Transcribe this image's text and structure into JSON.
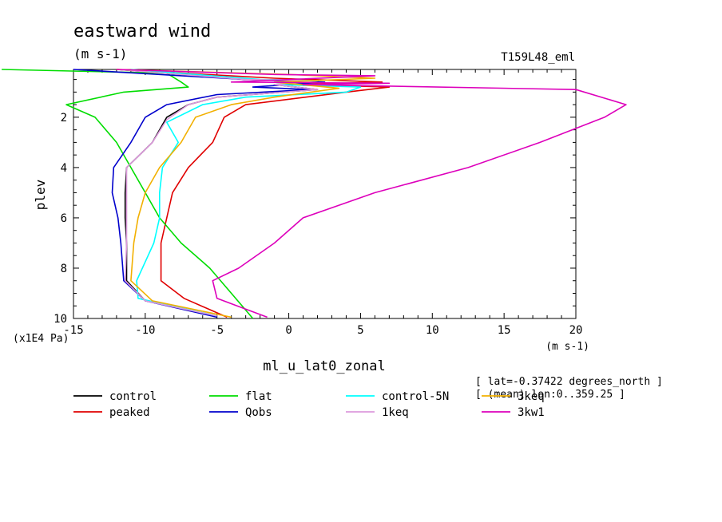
{
  "chart_data": {
    "type": "line",
    "title": "eastward wind",
    "subtitle": "(m s-1)",
    "run_label": "T159L48_eml",
    "xlabel": "ml_u_lat0_zonal",
    "ylabel": "plev",
    "x_unit": "(m s-1)",
    "y_unit": "(x1E4 Pa)",
    "xlim": [
      -15,
      20
    ],
    "ylim": [
      10,
      0.1
    ],
    "x_ticks": [
      "-15",
      "-10",
      "-5",
      "0",
      "5",
      "10",
      "15",
      "20"
    ],
    "y_ticks": [
      "2",
      "4",
      "6",
      "8",
      "10"
    ],
    "notes": [
      "[ lat=-0.37422 degrees_north ]",
      "[ (mean) lon:0..359.25 ]"
    ],
    "series": [
      {
        "name": "control",
        "color": "#000000",
        "points": [
          [
            -12,
            0.1
          ],
          [
            -3,
            0.5
          ],
          [
            2,
            0.55
          ],
          [
            -1,
            0.7
          ],
          [
            2,
            0.9
          ],
          [
            -5,
            1.2
          ],
          [
            -7,
            1.5
          ],
          [
            -8.5,
            2
          ],
          [
            -9.5,
            3
          ],
          [
            -11.3,
            4
          ],
          [
            -11.4,
            5
          ],
          [
            -11.4,
            6
          ],
          [
            -11.3,
            7
          ],
          [
            -11.3,
            8.5
          ],
          [
            -10,
            9.3
          ],
          [
            -5,
            9.9
          ]
        ]
      },
      {
        "name": "peaked",
        "color": "#e00000",
        "points": [
          [
            -12,
            0.1
          ],
          [
            -1,
            0.45
          ],
          [
            6.5,
            0.6
          ],
          [
            1,
            0.7
          ],
          [
            7,
            0.8
          ],
          [
            4,
            1
          ],
          [
            -3,
            1.5
          ],
          [
            -4.5,
            2
          ],
          [
            -5.3,
            3
          ],
          [
            -7,
            4
          ],
          [
            -8.1,
            5
          ],
          [
            -8.5,
            6
          ],
          [
            -8.9,
            7
          ],
          [
            -8.9,
            8.5
          ],
          [
            -7.3,
            9.2
          ],
          [
            -4.3,
            9.95
          ]
        ]
      },
      {
        "name": "flat",
        "color": "#00dd00",
        "points": [
          [
            -20,
            0.1
          ],
          [
            -8.5,
            0.25
          ],
          [
            -7.5,
            0.6
          ],
          [
            -7,
            0.8
          ],
          [
            -11.5,
            1
          ],
          [
            -15.5,
            1.5
          ],
          [
            -13.5,
            2
          ],
          [
            -12,
            3
          ],
          [
            -11,
            4
          ],
          [
            -10,
            5
          ],
          [
            -9,
            6
          ],
          [
            -7.5,
            7
          ],
          [
            -5.5,
            8
          ],
          [
            -4,
            9
          ],
          [
            -2.5,
            10
          ]
        ]
      },
      {
        "name": "Qobs",
        "color": "#0000cc",
        "points": [
          [
            -15,
            0.1
          ],
          [
            -3,
            0.5
          ],
          [
            2.5,
            0.6
          ],
          [
            -2.5,
            0.8
          ],
          [
            1.5,
            0.9
          ],
          [
            -5,
            1.1
          ],
          [
            -8.5,
            1.5
          ],
          [
            -10,
            2
          ],
          [
            -11,
            3
          ],
          [
            -12.2,
            4
          ],
          [
            -12.3,
            5
          ],
          [
            -11.9,
            6
          ],
          [
            -11.7,
            7
          ],
          [
            -11.5,
            8.5
          ],
          [
            -10,
            9.3
          ],
          [
            -5,
            9.95
          ]
        ]
      },
      {
        "name": "control-5N",
        "color": "#00ffff",
        "points": [
          [
            -11,
            0.1
          ],
          [
            -2,
            0.5
          ],
          [
            2,
            0.55
          ],
          [
            -1,
            0.7
          ],
          [
            5,
            0.8
          ],
          [
            4,
            1
          ],
          [
            -3,
            1.2
          ],
          [
            -6,
            1.5
          ],
          [
            -8.5,
            2.2
          ],
          [
            -7.7,
            3
          ],
          [
            -8.8,
            4
          ],
          [
            -9,
            5
          ],
          [
            -9,
            6
          ],
          [
            -9.4,
            7
          ],
          [
            -10.6,
            8.5
          ],
          [
            -10.5,
            9.2
          ],
          [
            -5,
            9.9
          ]
        ]
      },
      {
        "name": "1keq",
        "color": "#dd99dd",
        "points": [
          [
            -12,
            0.1
          ],
          [
            -3,
            0.5
          ],
          [
            2,
            0.55
          ],
          [
            -1,
            0.7
          ],
          [
            2,
            0.9
          ],
          [
            -5,
            1.2
          ],
          [
            -7,
            1.5
          ],
          [
            -8.5,
            2.1
          ],
          [
            -9.5,
            3
          ],
          [
            -11.3,
            4
          ],
          [
            -11.3,
            5
          ],
          [
            -11.3,
            6
          ],
          [
            -11.3,
            7
          ],
          [
            -11.4,
            8.5
          ],
          [
            -10,
            9.3
          ],
          [
            -5,
            9.9
          ]
        ]
      },
      {
        "name": "3keq",
        "color": "#f2b000",
        "points": [
          [
            -12,
            0.1
          ],
          [
            0,
            0.3
          ],
          [
            6,
            0.45
          ],
          [
            -1,
            0.6
          ],
          [
            3.5,
            0.85
          ],
          [
            -1,
            1.2
          ],
          [
            -4,
            1.5
          ],
          [
            -6.5,
            2
          ],
          [
            -7.5,
            3
          ],
          [
            -9,
            4
          ],
          [
            -10,
            5
          ],
          [
            -10.5,
            6
          ],
          [
            -10.8,
            7
          ],
          [
            -11,
            8.5
          ],
          [
            -9.5,
            9.3
          ],
          [
            -4,
            9.95
          ]
        ]
      },
      {
        "name": "3kw1",
        "color": "#dd00bb",
        "points": [
          [
            -12,
            0.1
          ],
          [
            -1,
            0.3
          ],
          [
            6,
            0.35
          ],
          [
            -4,
            0.6
          ],
          [
            7,
            0.65
          ],
          [
            1,
            0.7
          ],
          [
            20,
            0.9
          ],
          [
            23.5,
            1.5
          ],
          [
            22,
            2
          ],
          [
            17.5,
            3
          ],
          [
            12.5,
            4
          ],
          [
            6,
            5
          ],
          [
            1,
            6
          ],
          [
            -1,
            7
          ],
          [
            -3.5,
            8
          ],
          [
            -5.3,
            8.5
          ],
          [
            -5,
            9.2
          ],
          [
            -1.5,
            9.95
          ]
        ]
      }
    ]
  }
}
